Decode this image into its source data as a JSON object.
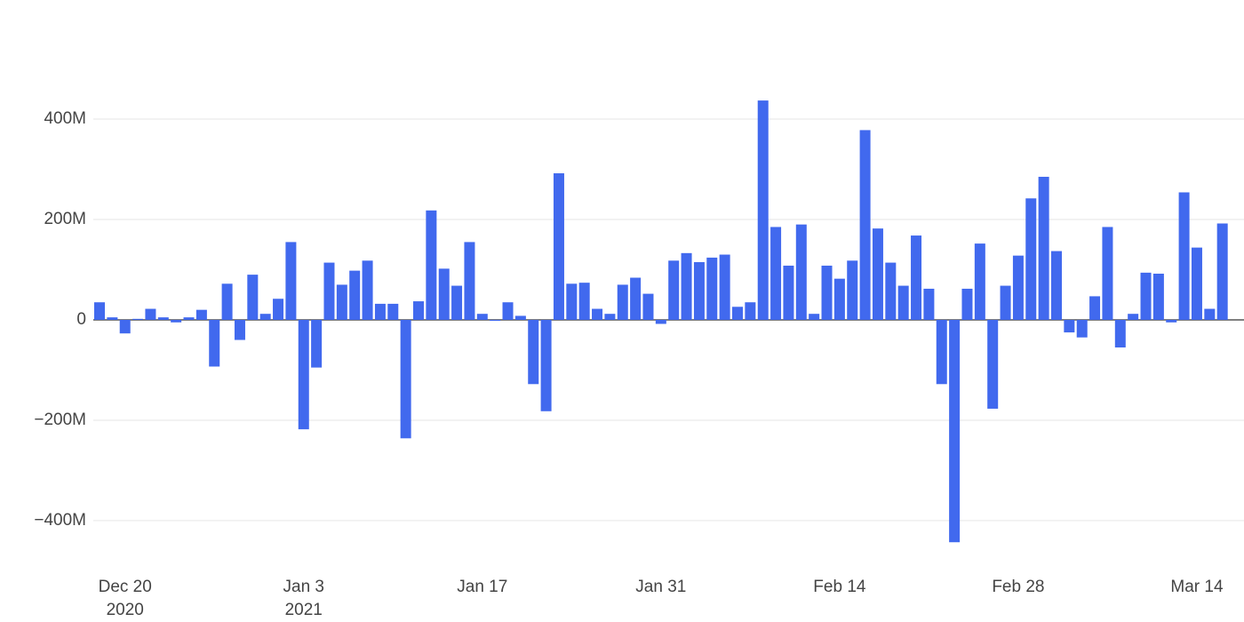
{
  "chart_data": {
    "type": "bar",
    "color": "#4169ee",
    "grid": true,
    "categories": [
      null,
      null,
      "Dec 20\n2020",
      null,
      null,
      null,
      null,
      null,
      null,
      null,
      null,
      null,
      null,
      null,
      null,
      null,
      "Jan 3\n2021",
      null,
      null,
      null,
      null,
      null,
      null,
      null,
      null,
      null,
      null,
      null,
      null,
      null,
      "Jan 17",
      null,
      null,
      null,
      null,
      null,
      null,
      null,
      null,
      null,
      null,
      null,
      null,
      null,
      "Jan 31",
      null,
      null,
      null,
      null,
      null,
      null,
      null,
      null,
      null,
      null,
      null,
      null,
      null,
      "Feb 14",
      null,
      null,
      null,
      null,
      null,
      null,
      null,
      null,
      null,
      null,
      null,
      null,
      null,
      "Feb 28",
      null,
      null,
      null,
      null,
      null,
      null,
      null,
      null,
      null,
      null,
      null,
      null,
      null,
      "Mar 14",
      null,
      null
    ],
    "values": [
      35,
      5,
      -27,
      2,
      22,
      5,
      -5,
      5,
      20,
      -93,
      72,
      -40,
      90,
      12,
      42,
      155,
      -218,
      -95,
      114,
      70,
      98,
      118,
      32,
      32,
      -236,
      37,
      218,
      102,
      68,
      155,
      12,
      -2,
      35,
      8,
      -128,
      -182,
      292,
      72,
      74,
      22,
      12,
      70,
      84,
      52,
      -8,
      118,
      133,
      115,
      124,
      130,
      26,
      35,
      437,
      185,
      108,
      190,
      12,
      108,
      82,
      118,
      378,
      182,
      114,
      68,
      168,
      62,
      -128,
      -443,
      62,
      152,
      -177,
      68,
      128,
      242,
      285,
      137,
      -25,
      -35,
      47,
      185,
      -55,
      12,
      94,
      92,
      -5,
      254,
      144,
      22,
      192
    ],
    "ylim": [
      -478,
      531
    ],
    "yticks": [
      {
        "value": -400,
        "label": "−400M"
      },
      {
        "value": -200,
        "label": "−200M"
      },
      0,
      {
        "value": 200,
        "label": "200M"
      },
      {
        "value": 400,
        "label": "400M"
      }
    ]
  }
}
